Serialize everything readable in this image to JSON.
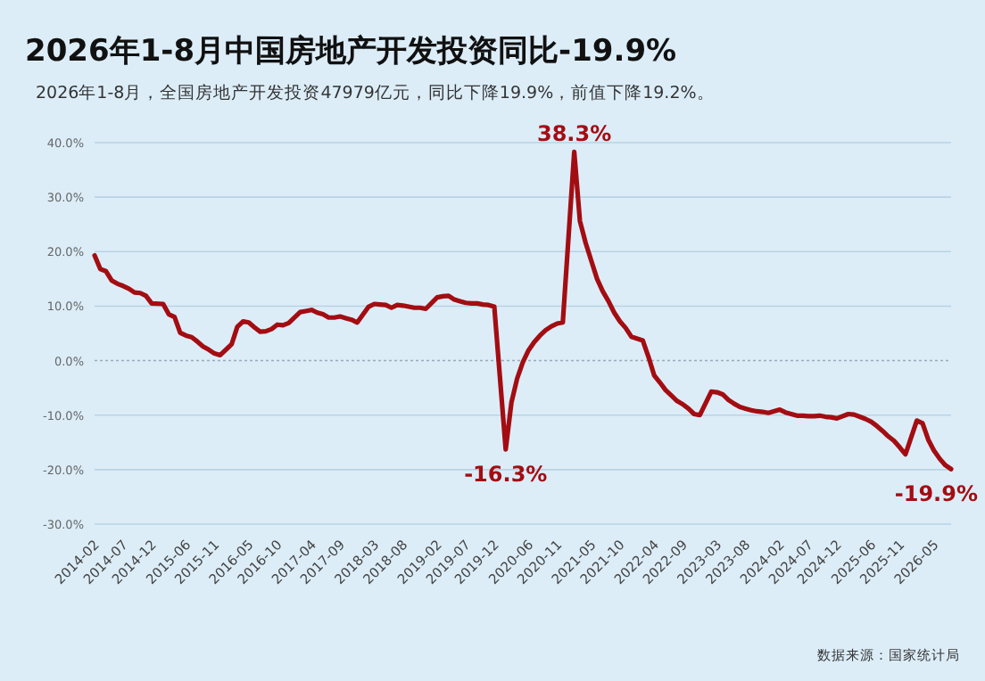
{
  "chart_data": {
    "type": "line",
    "title": "2026年1-8月中国房地产开发投资同比-19.9%",
    "subtitle": "2026年1-8月，全国房地产开发投资47979亿元，同比下降19.9%，前值下降19.2%。",
    "x": [
      "2014-02",
      "2014-03",
      "2014-04",
      "2014-05",
      "2014-06",
      "2014-07",
      "2014-08",
      "2014-09",
      "2014-10",
      "2014-11",
      "2014-12",
      "2015-02",
      "2015-03",
      "2015-04",
      "2015-05",
      "2015-06",
      "2015-07",
      "2015-08",
      "2015-09",
      "2015-10",
      "2015-11",
      "2015-12",
      "2016-02",
      "2016-03",
      "2016-04",
      "2016-05",
      "2016-06",
      "2016-07",
      "2016-08",
      "2016-09",
      "2016-10",
      "2016-11",
      "2016-12",
      "2017-02",
      "2017-03",
      "2017-04",
      "2017-05",
      "2017-06",
      "2017-07",
      "2017-08",
      "2017-09",
      "2017-10",
      "2017-11",
      "2017-12",
      "2018-02",
      "2018-03",
      "2018-04",
      "2018-05",
      "2018-06",
      "2018-07",
      "2018-08",
      "2018-09",
      "2018-10",
      "2018-11",
      "2018-12",
      "2019-02",
      "2019-03",
      "2019-04",
      "2019-05",
      "2019-06",
      "2019-07",
      "2019-08",
      "2019-09",
      "2019-10",
      "2019-11",
      "2019-12",
      "2020-02",
      "2020-03",
      "2020-04",
      "2020-05",
      "2020-06",
      "2020-07",
      "2020-08",
      "2020-09",
      "2020-10",
      "2020-11",
      "2020-12",
      "2021-02",
      "2021-03",
      "2021-04",
      "2021-05",
      "2021-06",
      "2021-07",
      "2021-08",
      "2021-09",
      "2021-10",
      "2021-11",
      "2021-12",
      "2022-02",
      "2022-03",
      "2022-04",
      "2022-05",
      "2022-06",
      "2022-07",
      "2022-08",
      "2022-09",
      "2022-10",
      "2022-11",
      "2022-12",
      "2023-02",
      "2023-03",
      "2023-04",
      "2023-05",
      "2023-06",
      "2023-07",
      "2023-08",
      "2023-09",
      "2023-10",
      "2023-11",
      "2023-12",
      "2024-02",
      "2024-03",
      "2024-04",
      "2024-05",
      "2024-06",
      "2024-07",
      "2024-08",
      "2024-09",
      "2024-10",
      "2024-11",
      "2024-12",
      "2025-02",
      "2025-03",
      "2025-04",
      "2025-05",
      "2025-06",
      "2025-07",
      "2025-08",
      "2025-09",
      "2025-10",
      "2025-11",
      "2025-12",
      "2026-02",
      "2026-03",
      "2026-04",
      "2026-05",
      "2026-06",
      "2026-07",
      "2026-08"
    ],
    "series": [
      {
        "color": "#a30d12",
        "values": [
          19.3,
          16.8,
          16.4,
          14.7,
          14.1,
          13.7,
          13.2,
          12.5,
          12.4,
          11.9,
          10.5,
          10.4,
          8.5,
          8.0,
          5.1,
          4.6,
          4.3,
          3.5,
          2.6,
          2.0,
          1.3,
          1.0,
          3.0,
          6.2,
          7.2,
          7.0,
          6.1,
          5.3,
          5.4,
          5.8,
          6.6,
          6.5,
          6.9,
          8.9,
          9.1,
          9.3,
          8.8,
          8.5,
          7.9,
          7.9,
          8.1,
          7.8,
          7.5,
          7.0,
          9.9,
          10.4,
          10.3,
          10.2,
          9.7,
          10.2,
          10.1,
          9.9,
          9.7,
          9.7,
          9.5,
          11.6,
          11.8,
          11.9,
          11.2,
          10.9,
          10.6,
          10.5,
          10.5,
          10.3,
          10.2,
          9.9,
          -16.3,
          -7.7,
          -3.3,
          -0.3,
          1.9,
          3.4,
          4.6,
          5.6,
          6.3,
          6.8,
          7.0,
          38.3,
          25.6,
          21.6,
          18.3,
          15.0,
          12.7,
          10.9,
          8.8,
          7.2,
          6.0,
          4.4,
          3.7,
          0.7,
          -2.7,
          -4.0,
          -5.4,
          -6.4,
          -7.4,
          -8.0,
          -8.8,
          -9.8,
          -10.0,
          -5.7,
          -5.8,
          -6.2,
          -7.2,
          -7.9,
          -8.5,
          -8.8,
          -9.1,
          -9.3,
          -9.4,
          -9.6,
          -9.0,
          -9.5,
          -9.8,
          -10.1,
          -10.1,
          -10.2,
          -10.2,
          -10.1,
          -10.3,
          -10.4,
          -10.6,
          -9.8,
          -9.9,
          -10.3,
          -10.7,
          -11.2,
          -12.0,
          -12.9,
          -13.9,
          -14.7,
          -15.9,
          -17.2,
          -11.0,
          -11.5,
          -14.5,
          -16.5,
          -18.0,
          -19.2,
          -19.9
        ]
      }
    ],
    "xlim": [
      "2014-02",
      "2026-08"
    ],
    "xticks": [
      "2014-02",
      "2014-07",
      "2014-12",
      "2015-06",
      "2015-11",
      "2016-05",
      "2016-10",
      "2017-04",
      "2017-09",
      "2018-03",
      "2018-08",
      "2019-02",
      "2019-07",
      "2019-12",
      "2020-06",
      "2020-11",
      "2021-05",
      "2021-10",
      "2022-04",
      "2022-09",
      "2023-03",
      "2023-08",
      "2024-02",
      "2024-07",
      "2024-12",
      "2025-06",
      "2025-11",
      "2026-05"
    ],
    "ylim": [
      -30,
      40
    ],
    "yticks": [
      {
        "value": -30,
        "label": "-30.0%"
      },
      {
        "value": -20,
        "label": "-20.0%"
      },
      {
        "value": -10,
        "label": "-10.0%"
      },
      {
        "value": 0,
        "label": "0.0%"
      },
      {
        "value": 10,
        "label": "10.0%"
      },
      {
        "value": 20,
        "label": "20.0%"
      },
      {
        "value": 30,
        "label": "30.0%"
      },
      {
        "value": 40,
        "label": "40.0%"
      }
    ],
    "grid": "y",
    "ref_lines": [
      {
        "axis": "y",
        "value": 0,
        "color": "#99aabb",
        "line_style": "dotted"
      }
    ],
    "annotations": [
      {
        "text": "38.3%",
        "x": "2021-02",
        "y": 38.3
      },
      {
        "text": "-16.3%",
        "x": "2020-02",
        "y": -16.3
      },
      {
        "text": "-19.9%",
        "x": "2026-08",
        "y": -19.9
      },
      "数据来源：国家统计局"
    ]
  }
}
